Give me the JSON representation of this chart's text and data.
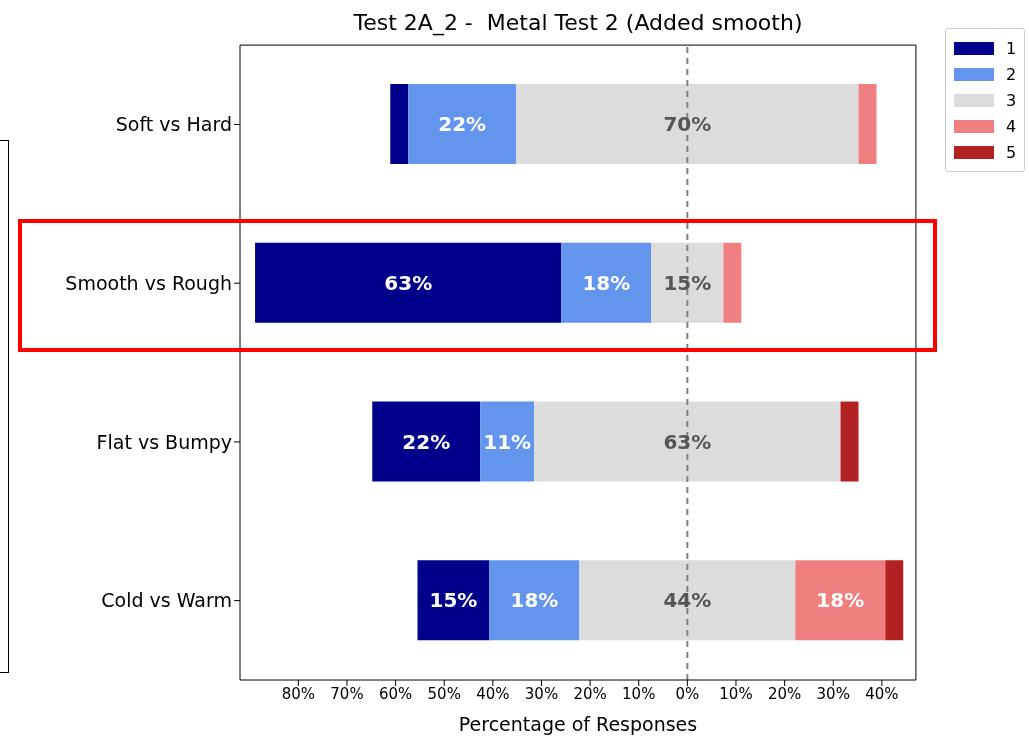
{
  "chart_data": {
    "type": "bar",
    "orientation": "horizontal",
    "title": "Test 2A_2 -  Metal Test 2 (Added smooth)",
    "xlabel": "Percentage of Responses",
    "categories": [
      "Soft vs Hard",
      "Smooth vs Rough",
      "Flat vs Bumpy",
      "Cold vs Warm"
    ],
    "series": [
      {
        "name": "1",
        "color": "#00008b",
        "base": [
          -61.1,
          -88.9,
          -64.8,
          -55.5
        ],
        "values": [
          3.7,
          63.0,
          22.2,
          14.8
        ],
        "value_labels": [
          null,
          "63%",
          "22%",
          "15%"
        ]
      },
      {
        "name": "2",
        "color": "#6495ed",
        "base": [
          -57.4,
          -25.9,
          -42.6,
          -40.7
        ],
        "values": [
          22.2,
          18.5,
          11.1,
          18.5
        ],
        "value_labels": [
          "22%",
          "18%",
          "11%",
          "18%"
        ]
      },
      {
        "name": "3",
        "color": "#dcdcdc",
        "base": [
          -35.2,
          -7.4,
          -31.5,
          -22.2
        ],
        "values": [
          70.4,
          14.8,
          63.0,
          44.4
        ],
        "value_labels": [
          "70%",
          "15%",
          "63%",
          "44%"
        ]
      },
      {
        "name": "4",
        "color": "#f08080",
        "base": [
          35.2,
          7.4,
          null,
          22.2
        ],
        "values": [
          3.7,
          3.7,
          null,
          18.5
        ],
        "value_labels": [
          null,
          null,
          null,
          "18%"
        ]
      },
      {
        "name": "5",
        "color": "#b22222",
        "base": [
          null,
          null,
          31.5,
          40.7
        ],
        "values": [
          null,
          null,
          3.7,
          3.7
        ],
        "value_labels": [
          null,
          null,
          null,
          null
        ]
      }
    ],
    "xlim": [
      -92,
      47
    ],
    "xticks": [
      {
        "value": -80,
        "label": "80%"
      },
      {
        "value": -70,
        "label": "70%"
      },
      {
        "value": -60,
        "label": "60%"
      },
      {
        "value": -50,
        "label": "50%"
      },
      {
        "value": -40,
        "label": "40%"
      },
      {
        "value": -30,
        "label": "30%"
      },
      {
        "value": -20,
        "label": "20%"
      },
      {
        "value": -10,
        "label": "10%"
      },
      {
        "value": 0,
        "label": "0%"
      },
      {
        "value": 10,
        "label": "10%"
      },
      {
        "value": 20,
        "label": "20%"
      },
      {
        "value": 30,
        "label": "30%"
      },
      {
        "value": 40,
        "label": "40%"
      }
    ],
    "ref_lines": [
      {
        "axis": "x",
        "value": 0,
        "color": "#808080",
        "line_style": "dashed"
      }
    ],
    "legend": "top right"
  }
}
